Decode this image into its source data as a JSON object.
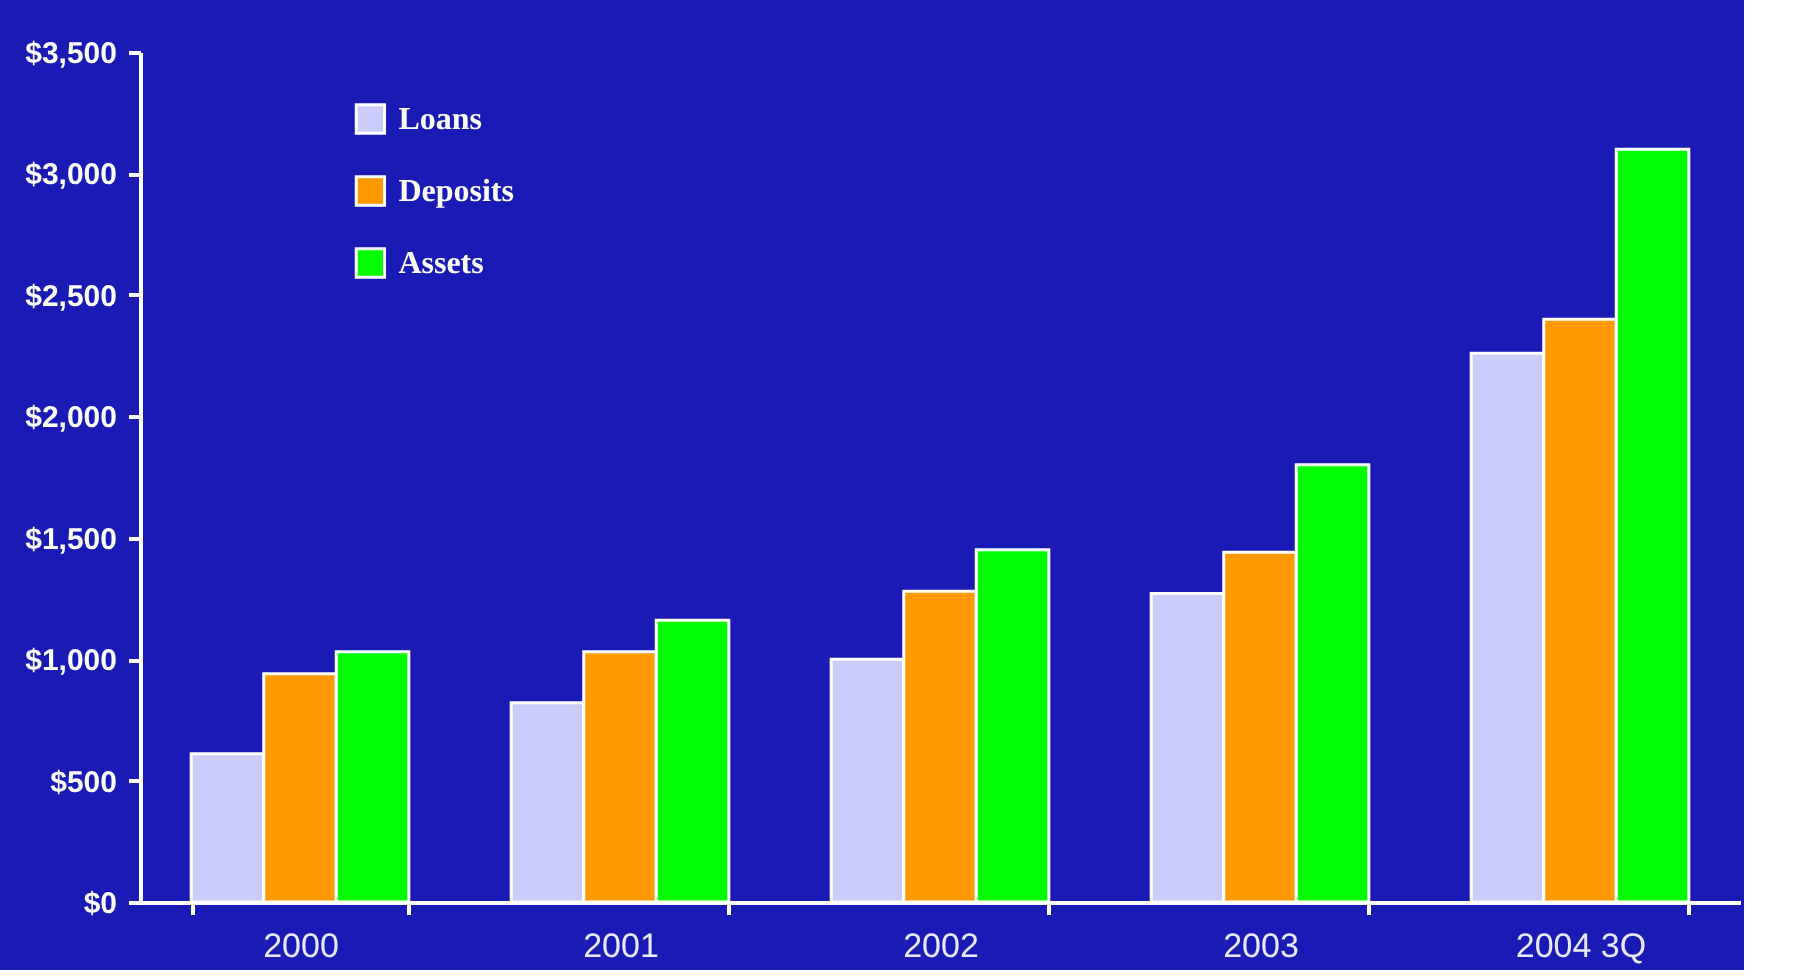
{
  "chart_data": {
    "type": "bar",
    "categories": [
      "2000",
      "2001",
      "2002",
      "2003",
      "2004 3Q"
    ],
    "series": [
      {
        "name": "Loans",
        "color": "#ccccfa",
        "values": [
          610,
          820,
          1000,
          1270,
          2260
        ]
      },
      {
        "name": "Deposits",
        "color": "#ff9900",
        "values": [
          940,
          1030,
          1280,
          1440,
          2400
        ]
      },
      {
        "name": "Assets",
        "color": "#00ff00",
        "values": [
          1030,
          1160,
          1450,
          1800,
          3100
        ]
      }
    ],
    "ylim": [
      0,
      3500
    ],
    "yticks": [
      {
        "value": 0,
        "label": "$0"
      },
      {
        "value": 500,
        "label": "$500"
      },
      {
        "value": 1000,
        "label": "$1,000"
      },
      {
        "value": 1500,
        "label": "$1,500"
      },
      {
        "value": 2000,
        "label": "$2,000"
      },
      {
        "value": 2500,
        "label": "$2,500"
      },
      {
        "value": 3000,
        "label": "$3,000"
      },
      {
        "value": 3500,
        "label": "$3,500"
      }
    ],
    "grid": false,
    "legend": "top left"
  }
}
